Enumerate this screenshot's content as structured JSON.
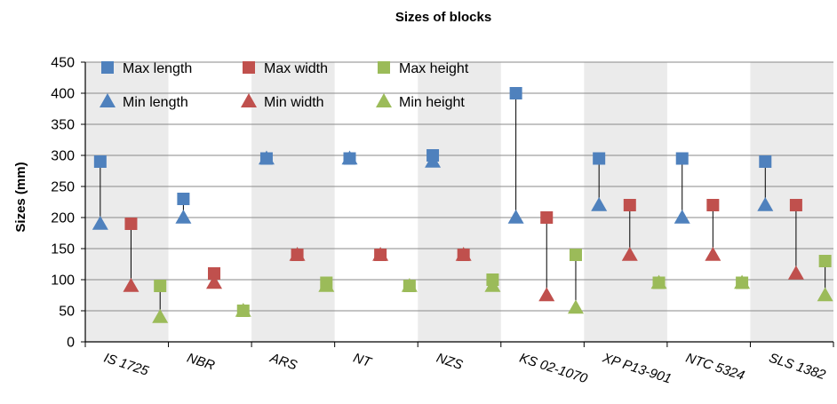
{
  "chart_data": {
    "type": "scatter",
    "title": "Sizes of blocks",
    "xlabel": "",
    "ylabel": "Sizes (mm)",
    "ylim": [
      0,
      450
    ],
    "yticks": [
      0,
      50,
      100,
      150,
      200,
      250,
      300,
      350,
      400,
      450
    ],
    "grid": true,
    "legend_position": "top-left",
    "categories": [
      "IS 1725",
      "NBR",
      "ARS",
      "NT",
      "NZS",
      "KS 02-1070",
      "XP P13-901",
      "NTC 5324",
      "SLS 1382"
    ],
    "series": [
      {
        "name": "Max length",
        "marker": "square",
        "color": "#4F81BD",
        "values": [
          290,
          230,
          295,
          295,
          300,
          400,
          295,
          295,
          290
        ]
      },
      {
        "name": "Min length",
        "marker": "triangle",
        "color": "#4F81BD",
        "values": [
          190,
          200,
          295,
          295,
          290,
          200,
          220,
          200,
          220
        ]
      },
      {
        "name": "Max width",
        "marker": "square",
        "color": "#C0504D",
        "values": [
          190,
          110,
          140,
          140,
          140,
          200,
          220,
          220,
          220
        ]
      },
      {
        "name": "Min width",
        "marker": "triangle",
        "color": "#C0504D",
        "values": [
          90,
          95,
          140,
          140,
          140,
          75,
          140,
          140,
          110
        ]
      },
      {
        "name": "Max height",
        "marker": "square",
        "color": "#9BBB59",
        "values": [
          90,
          50,
          95,
          90,
          100,
          140,
          95,
          95,
          130
        ]
      },
      {
        "name": "Min  height",
        "marker": "triangle",
        "color": "#9BBB59",
        "values": [
          40,
          50,
          90,
          90,
          90,
          55,
          95,
          95,
          75
        ]
      }
    ]
  }
}
